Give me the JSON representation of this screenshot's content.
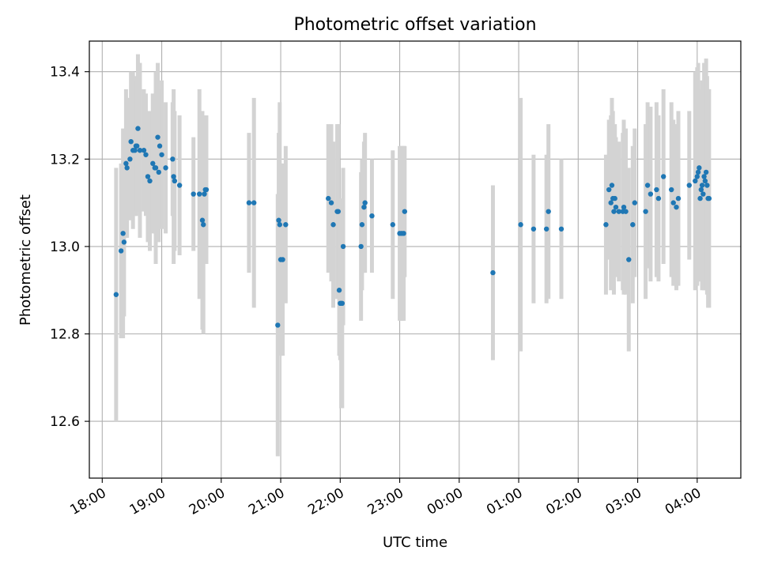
{
  "chart_data": {
    "type": "scatter",
    "title": "Photometric offset variation",
    "xlabel": "UTC time",
    "ylabel": "Photometric offset",
    "grid": true,
    "ylim": [
      12.47,
      13.47
    ],
    "xlim": [
      "17:47",
      "04:44"
    ],
    "x_ticks": [
      "18:00",
      "19:00",
      "20:00",
      "21:00",
      "22:00",
      "23:00",
      "00:00",
      "01:00",
      "02:00",
      "03:00",
      "04:00"
    ],
    "y_ticks": [
      "12.6",
      "12.8",
      "13.0",
      "13.2",
      "13.4"
    ],
    "y_tick_values": [
      12.6,
      12.8,
      13.0,
      13.2,
      13.4
    ],
    "colors": {
      "point": "#1f77b4",
      "error_bar": "#d3d3d3",
      "grid": "#b0b0b0"
    },
    "series": [
      {
        "x": [
          "18:14",
          "18:19",
          "18:21",
          "18:22",
          "18:24",
          "18:25",
          "18:28",
          "18:29",
          "18:31",
          "18:33",
          "18:34",
          "18:35",
          "18:36",
          "18:38",
          "18:42",
          "18:44",
          "18:46",
          "18:48",
          "18:51",
          "18:53",
          "18:54",
          "18:56",
          "18:57",
          "18:58",
          "19:00",
          "19:04",
          "19:11",
          "19:12",
          "19:13",
          "19:18",
          "19:32",
          "19:38",
          "19:41",
          "19:42",
          "19:43",
          "19:44",
          "19:45",
          "20:28",
          "20:33",
          "20:57",
          "20:58",
          "20:59",
          "21:00",
          "21:02",
          "21:05",
          "21:48",
          "21:51",
          "21:53",
          "21:57",
          "21:58",
          "21:59",
          "22:00",
          "22:01",
          "22:02",
          "22:03",
          "22:21",
          "22:22",
          "22:24",
          "22:25",
          "22:32",
          "22:53",
          "23:00",
          "23:02",
          "23:04",
          "23:05",
          "00:34",
          "01:02",
          "01:15",
          "01:28",
          "01:30",
          "01:43",
          "02:28",
          "02:31",
          "02:33",
          "02:34",
          "02:35",
          "02:36",
          "02:37",
          "02:38",
          "02:41",
          "02:45",
          "02:46",
          "02:48",
          "02:51",
          "02:55",
          "02:57",
          "03:08",
          "03:10",
          "03:13",
          "03:19",
          "03:21",
          "03:26",
          "03:34",
          "03:36",
          "03:39",
          "03:41",
          "03:52",
          "03:58",
          "04:00",
          "04:01",
          "04:02",
          "04:03",
          "04:04",
          "04:05",
          "04:06",
          "04:07",
          "04:08",
          "04:09",
          "04:10",
          "04:11",
          "04:12"
        ],
        "y": [
          12.89,
          12.99,
          13.03,
          13.01,
          13.19,
          13.18,
          13.2,
          13.24,
          13.22,
          13.22,
          13.23,
          13.23,
          13.27,
          13.22,
          13.22,
          13.21,
          13.16,
          13.15,
          13.19,
          13.18,
          13.18,
          13.25,
          13.17,
          13.23,
          13.21,
          13.18,
          13.2,
          13.16,
          13.15,
          13.14,
          13.12,
          13.12,
          13.06,
          13.05,
          13.12,
          13.13,
          13.13,
          13.1,
          13.1,
          12.82,
          13.06,
          13.05,
          12.97,
          12.97,
          13.05,
          13.11,
          13.1,
          13.05,
          13.08,
          13.08,
          12.9,
          12.87,
          12.87,
          12.87,
          13.0,
          13.0,
          13.05,
          13.09,
          13.1,
          13.07,
          13.05,
          13.03,
          13.03,
          13.03,
          13.08,
          12.94,
          13.05,
          13.04,
          13.04,
          13.08,
          13.04,
          13.05,
          13.13,
          13.1,
          13.14,
          13.11,
          13.08,
          13.11,
          13.09,
          13.08,
          13.08,
          13.09,
          13.08,
          12.97,
          13.05,
          13.1,
          13.08,
          13.14,
          13.12,
          13.13,
          13.11,
          13.16,
          13.13,
          13.1,
          13.09,
          13.11,
          13.14,
          13.15,
          13.16,
          13.17,
          13.18,
          13.11,
          13.13,
          13.14,
          13.12,
          13.16,
          13.15,
          13.17,
          13.14,
          13.11,
          13.11
        ],
        "err": [
          0.29,
          0.2,
          0.24,
          0.17,
          0.17,
          0.16,
          0.14,
          0.16,
          0.18,
          0.15,
          0.16,
          0.15,
          0.17,
          0.2,
          0.14,
          0.14,
          0.15,
          0.16,
          0.16,
          0.15,
          0.22,
          0.17,
          0.16,
          0.13,
          0.17,
          0.15,
          0.13,
          0.2,
          0.16,
          0.16,
          0.13,
          0.24,
          0.25,
          0.25,
          0.16,
          0.16,
          0.17,
          0.16,
          0.24,
          0.3,
          0.2,
          0.28,
          0.22,
          0.22,
          0.18,
          0.17,
          0.18,
          0.19,
          0.2,
          0.2,
          0.15,
          0.13,
          0.24,
          0.24,
          0.18,
          0.17,
          0.15,
          0.15,
          0.16,
          0.13,
          0.17,
          0.2,
          0.2,
          0.2,
          0.15,
          0.2,
          0.29,
          0.17,
          0.17,
          0.2,
          0.16,
          0.16,
          0.16,
          0.2,
          0.2,
          0.2,
          0.19,
          0.17,
          0.16,
          0.16,
          0.18,
          0.2,
          0.19,
          0.21,
          0.18,
          0.17,
          0.2,
          0.19,
          0.2,
          0.2,
          0.19,
          0.2,
          0.2,
          0.19,
          0.19,
          0.2,
          0.17,
          0.25,
          0.25,
          0.25,
          0.18,
          0.19,
          0.2,
          0.24,
          0.2,
          0.26,
          0.25,
          0.26,
          0.25,
          0.25,
          0.25
        ]
      }
    ]
  }
}
